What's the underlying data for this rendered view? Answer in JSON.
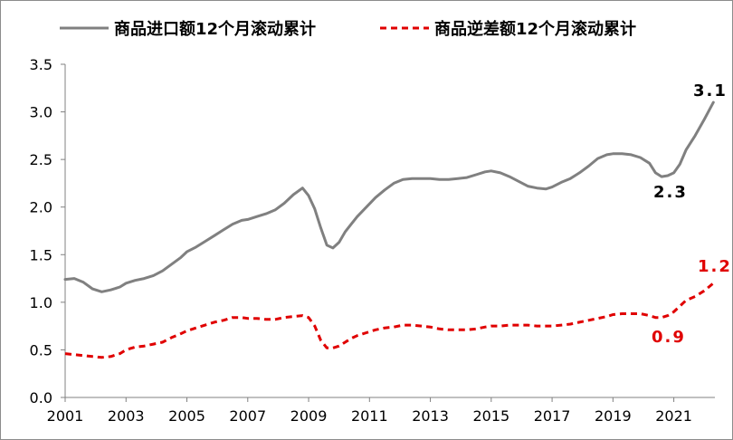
{
  "chart_data": {
    "type": "line",
    "title": "",
    "xlabel": "",
    "ylabel": "",
    "ylim": [
      0,
      3.5
    ],
    "y_ticks": [
      "0.0",
      "0.5",
      "1.0",
      "1.5",
      "2.0",
      "2.5",
      "3.0",
      "3.5"
    ],
    "x_ticks": [
      "2001",
      "2003",
      "2005",
      "2007",
      "2009",
      "2011",
      "2013",
      "2015",
      "2017",
      "2019",
      "2021"
    ],
    "grid": false,
    "legend_position": "top",
    "series": [
      {
        "name": "商品进口额12个月滚动累计",
        "color": "#808080",
        "line_style": "solid",
        "x": [
          2001.0,
          2001.3,
          2001.6,
          2001.9,
          2002.2,
          2002.5,
          2002.8,
          2003.0,
          2003.3,
          2003.6,
          2003.9,
          2004.2,
          2004.5,
          2004.8,
          2005.0,
          2005.3,
          2005.6,
          2005.9,
          2006.2,
          2006.5,
          2006.8,
          2007.0,
          2007.3,
          2007.6,
          2007.9,
          2008.2,
          2008.5,
          2008.8,
          2009.0,
          2009.2,
          2009.4,
          2009.6,
          2009.8,
          2010.0,
          2010.2,
          2010.4,
          2010.6,
          2010.9,
          2011.2,
          2011.5,
          2011.8,
          2012.1,
          2012.4,
          2012.7,
          2013.0,
          2013.3,
          2013.6,
          2013.9,
          2014.2,
          2014.5,
          2014.8,
          2015.0,
          2015.3,
          2015.6,
          2015.9,
          2016.2,
          2016.5,
          2016.8,
          2017.0,
          2017.3,
          2017.6,
          2017.9,
          2018.2,
          2018.5,
          2018.8,
          2019.0,
          2019.3,
          2019.6,
          2019.9,
          2020.2,
          2020.4,
          2020.6,
          2020.8,
          2021.0,
          2021.2,
          2021.4,
          2021.7,
          2022.0,
          2022.3
        ],
        "values": [
          1.24,
          1.25,
          1.21,
          1.14,
          1.11,
          1.13,
          1.16,
          1.2,
          1.23,
          1.25,
          1.28,
          1.33,
          1.4,
          1.47,
          1.53,
          1.58,
          1.64,
          1.7,
          1.76,
          1.82,
          1.86,
          1.87,
          1.9,
          1.93,
          1.97,
          2.04,
          2.13,
          2.2,
          2.12,
          1.98,
          1.78,
          1.6,
          1.57,
          1.63,
          1.74,
          1.82,
          1.9,
          2.0,
          2.1,
          2.18,
          2.25,
          2.29,
          2.3,
          2.3,
          2.3,
          2.29,
          2.29,
          2.3,
          2.31,
          2.34,
          2.37,
          2.38,
          2.36,
          2.32,
          2.27,
          2.22,
          2.2,
          2.19,
          2.21,
          2.26,
          2.3,
          2.36,
          2.43,
          2.51,
          2.55,
          2.56,
          2.56,
          2.55,
          2.52,
          2.46,
          2.36,
          2.32,
          2.33,
          2.36,
          2.45,
          2.6,
          2.75,
          2.92,
          3.1
        ]
      },
      {
        "name": "商品逆差额12个月滚动累计",
        "color": "#e00000",
        "line_style": "dashed",
        "x": [
          2001.0,
          2001.3,
          2001.6,
          2001.9,
          2002.2,
          2002.5,
          2002.8,
          2003.0,
          2003.3,
          2003.6,
          2003.9,
          2004.2,
          2004.5,
          2004.8,
          2005.0,
          2005.3,
          2005.6,
          2005.9,
          2006.2,
          2006.5,
          2006.8,
          2007.0,
          2007.3,
          2007.6,
          2007.9,
          2008.2,
          2008.5,
          2008.8,
          2009.0,
          2009.2,
          2009.4,
          2009.6,
          2009.8,
          2010.0,
          2010.2,
          2010.4,
          2010.6,
          2010.9,
          2011.2,
          2011.5,
          2011.8,
          2012.1,
          2012.4,
          2012.7,
          2013.0,
          2013.3,
          2013.6,
          2013.9,
          2014.2,
          2014.5,
          2014.8,
          2015.0,
          2015.3,
          2015.6,
          2015.9,
          2016.2,
          2016.5,
          2016.8,
          2017.0,
          2017.3,
          2017.6,
          2017.9,
          2018.2,
          2018.5,
          2018.8,
          2019.0,
          2019.3,
          2019.6,
          2019.9,
          2020.2,
          2020.4,
          2020.6,
          2020.8,
          2021.0,
          2021.2,
          2021.4,
          2021.7,
          2022.0,
          2022.3
        ],
        "values": [
          0.46,
          0.45,
          0.44,
          0.43,
          0.42,
          0.43,
          0.46,
          0.5,
          0.53,
          0.54,
          0.56,
          0.58,
          0.63,
          0.67,
          0.7,
          0.73,
          0.76,
          0.79,
          0.81,
          0.84,
          0.84,
          0.83,
          0.83,
          0.82,
          0.82,
          0.84,
          0.85,
          0.86,
          0.84,
          0.75,
          0.6,
          0.52,
          0.52,
          0.54,
          0.58,
          0.62,
          0.65,
          0.68,
          0.71,
          0.73,
          0.74,
          0.76,
          0.76,
          0.75,
          0.74,
          0.72,
          0.71,
          0.71,
          0.71,
          0.72,
          0.74,
          0.75,
          0.75,
          0.76,
          0.76,
          0.76,
          0.75,
          0.75,
          0.75,
          0.76,
          0.77,
          0.79,
          0.81,
          0.83,
          0.85,
          0.87,
          0.88,
          0.88,
          0.88,
          0.86,
          0.84,
          0.84,
          0.86,
          0.9,
          0.96,
          1.02,
          1.06,
          1.12,
          1.2
        ]
      }
    ],
    "annotations": [
      {
        "text": "3.1",
        "color": "#000000"
      },
      {
        "text": "2.3",
        "color": "#000000"
      },
      {
        "text": "1.2",
        "color": "#e00000"
      },
      {
        "text": "0.9",
        "color": "#e00000"
      }
    ]
  }
}
